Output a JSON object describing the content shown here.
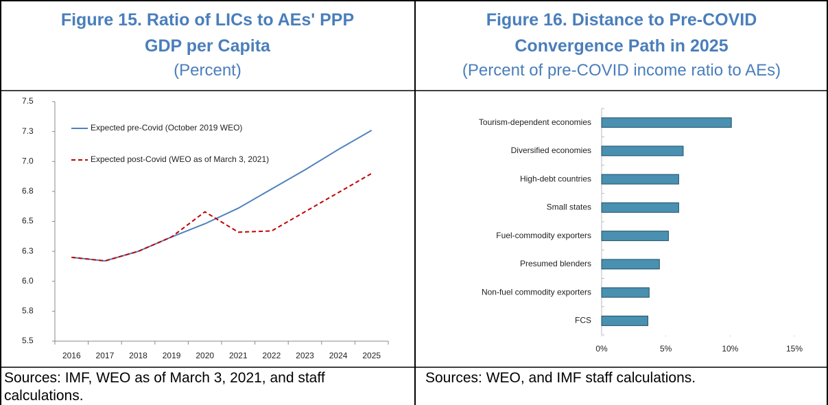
{
  "chart_data": [
    {
      "type": "line",
      "title": "Figure 15. Ratio of LICs to AEs' PPP GDP per Capita",
      "subtitle": "(Percent)",
      "categories": [
        "2016",
        "2017",
        "2018",
        "2019",
        "2020",
        "2021",
        "2022",
        "2023",
        "2024",
        "2025"
      ],
      "series": [
        {
          "name": "Expected pre-Covid (October 2019 WEO)",
          "color": "#4f81bd",
          "dash": "solid",
          "values": [
            6.2,
            6.17,
            6.25,
            6.37,
            6.48,
            6.61,
            6.77,
            6.93,
            7.1,
            7.26
          ]
        },
        {
          "name": "Expected post-Covid (WEO as of March 3, 2021)",
          "color": "#c00000",
          "dash": "dashed",
          "values": [
            6.2,
            6.17,
            6.25,
            6.37,
            6.58,
            6.41,
            6.42,
            6.58,
            6.74,
            6.9
          ]
        }
      ],
      "ylim": [
        5.5,
        7.5
      ],
      "yticks": [
        5.5,
        {
          "value": 5.75,
          "label": "5.8"
        },
        {
          "value": 6.0,
          "label": "6.0"
        },
        {
          "value": 6.25,
          "label": "6.3"
        },
        6.5,
        {
          "value": 6.75,
          "label": "6.8"
        },
        {
          "value": 7.0,
          "label": "7.0"
        },
        {
          "value": 7.25,
          "label": "7.3"
        },
        7.5
      ],
      "legend": "upper left",
      "grid": false,
      "source": "Sources: IMF, WEO as of March 3, 2021, and staff calculations."
    },
    {
      "type": "barh",
      "title": "Figure 16. Distance to Pre-COVID Convergence Path in 2025",
      "subtitle": "(Percent of pre-COVID income ratio to AEs)",
      "categories": [
        "Tourism-dependent economies",
        "Diversified economies",
        "High-debt countries",
        "Small states",
        "Fuel-commodity exporters",
        "Presumed blenders",
        "Non-fuel commodity exporters",
        "FCS"
      ],
      "values": [
        10.1,
        6.35,
        6.0,
        6.0,
        5.2,
        4.5,
        3.7,
        3.6
      ],
      "color": "#4a90b0",
      "xlim": [
        0,
        15
      ],
      "xticks": [
        {
          "value": 0,
          "label": "0%"
        },
        {
          "value": 5,
          "label": "5%"
        },
        {
          "value": 10,
          "label": "10%"
        },
        {
          "value": 15,
          "label": "15%"
        }
      ],
      "grid": false,
      "source": "Sources: WEO, and IMF staff calculations."
    }
  ]
}
